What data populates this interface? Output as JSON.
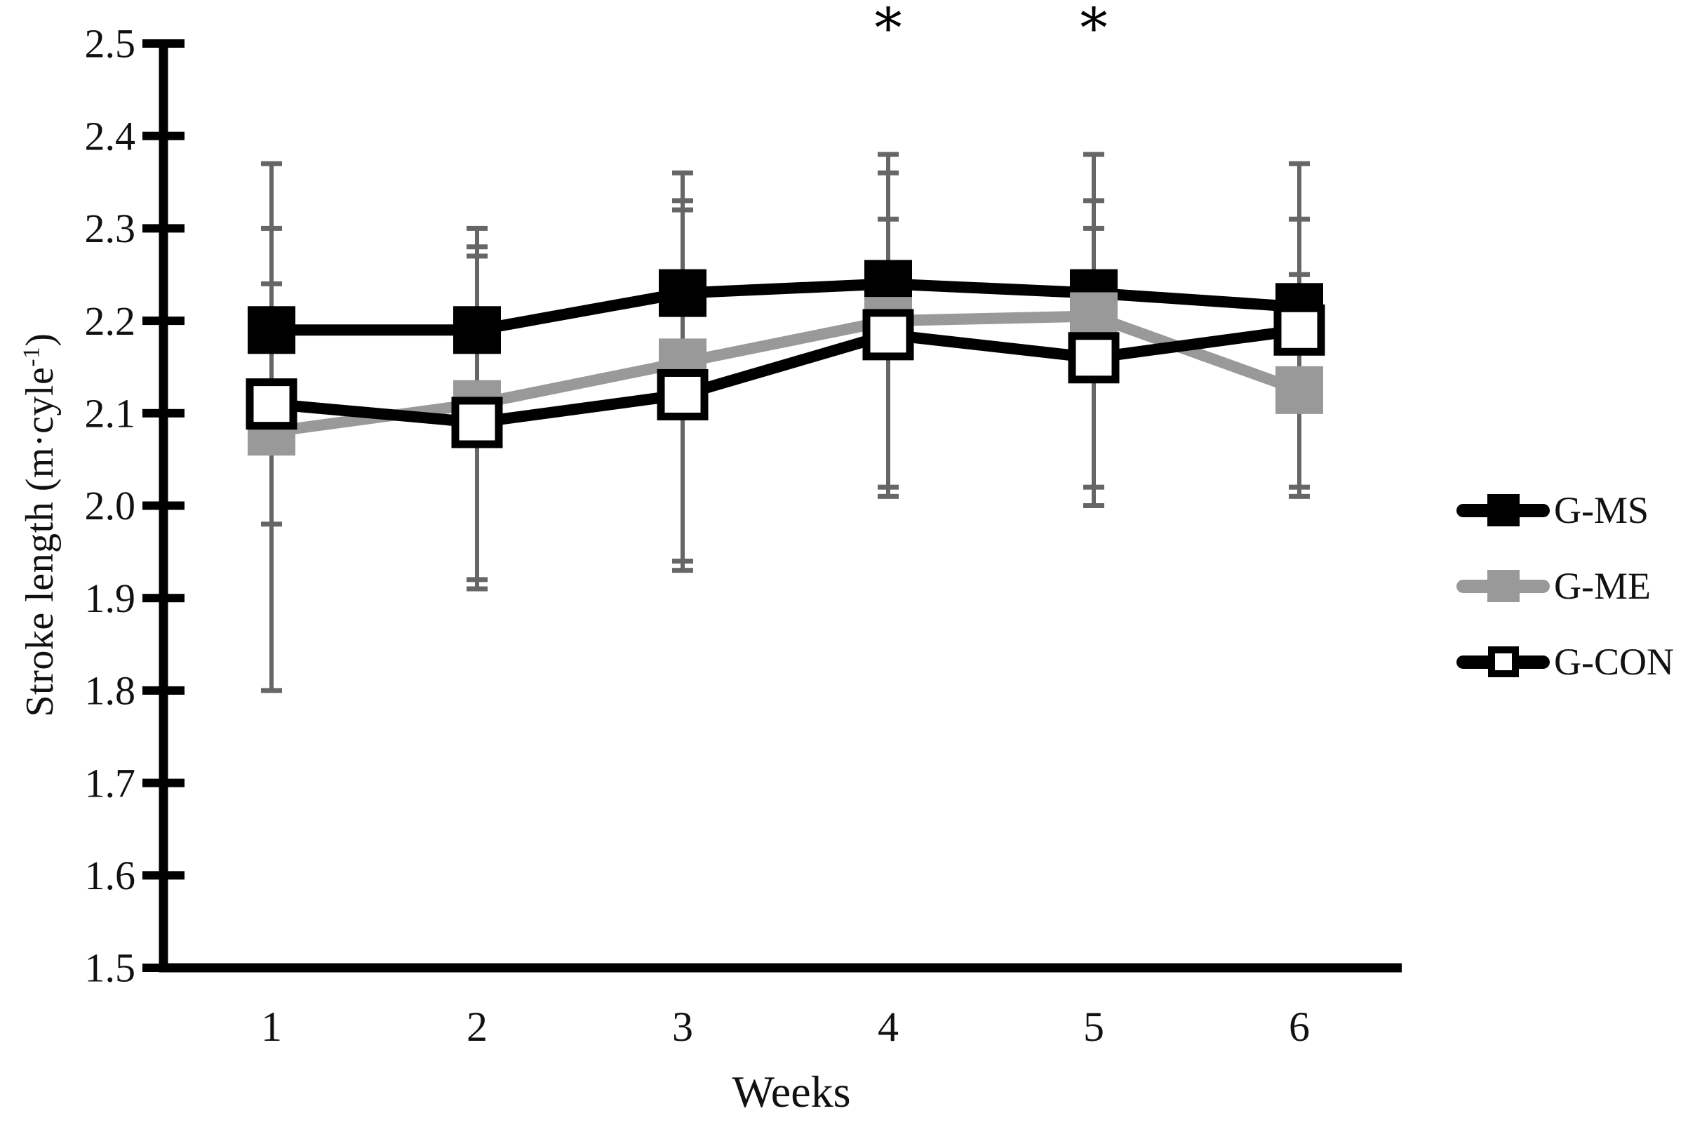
{
  "chart_data": {
    "type": "line",
    "title": "",
    "xlabel": "Weeks",
    "ylabel": {
      "main": "Stroke length (m·cyle",
      "sup": "-1",
      "close": ")"
    },
    "x": [
      1,
      2,
      3,
      4,
      5,
      6
    ],
    "x_tick_labels": [
      "1",
      "2",
      "3",
      "4",
      "5",
      "6"
    ],
    "ylim": [
      1.5,
      2.5
    ],
    "yticks": [
      2.5,
      2.4,
      2.3,
      2.2,
      2.1,
      2.0,
      1.9,
      1.8,
      1.7,
      1.6,
      1.5
    ],
    "ytick_labels": [
      "2.5",
      "2.4",
      "2.3",
      "2.2",
      "2.1",
      "2.0",
      "1.9",
      "1.8",
      "1.7",
      "1.6",
      "1.5"
    ],
    "grid": false,
    "legend_position": "right",
    "error_bar_color": "#666666",
    "series": [
      {
        "name": "G-MS",
        "color": "#000000",
        "marker": "filled-square",
        "marker_fill": "#000000",
        "values": [
          2.19,
          2.19,
          2.23,
          2.24,
          2.23,
          2.215
        ],
        "err_up_to": [
          2.3,
          2.28,
          2.33,
          2.31,
          2.3,
          2.31
        ],
        "err_down_to": [
          2.08,
          2.1,
          2.13,
          2.17,
          2.16,
          2.11
        ]
      },
      {
        "name": "G-ME",
        "color": "#999999",
        "marker": "filled-square",
        "marker_fill": "#999999",
        "values": [
          2.08,
          2.11,
          2.155,
          2.2,
          2.205,
          2.125
        ],
        "err_up_to": [
          2.37,
          2.3,
          2.36,
          2.38,
          2.38,
          2.25
        ],
        "err_down_to": [
          1.8,
          1.92,
          1.94,
          2.02,
          2.02,
          2.01
        ]
      },
      {
        "name": "G-CON",
        "color": "#000000",
        "marker": "open-square",
        "marker_fill": "#ffffff",
        "values": [
          2.11,
          2.09,
          2.12,
          2.185,
          2.16,
          2.19
        ],
        "err_up_to": [
          2.24,
          2.27,
          2.32,
          2.36,
          2.33,
          2.37
        ],
        "err_down_to": [
          1.98,
          1.91,
          1.93,
          2.01,
          2.0,
          2.02
        ]
      }
    ],
    "annotations": [
      {
        "x_week": 4,
        "text": "*"
      },
      {
        "x_week": 5,
        "text": "*"
      }
    ]
  }
}
